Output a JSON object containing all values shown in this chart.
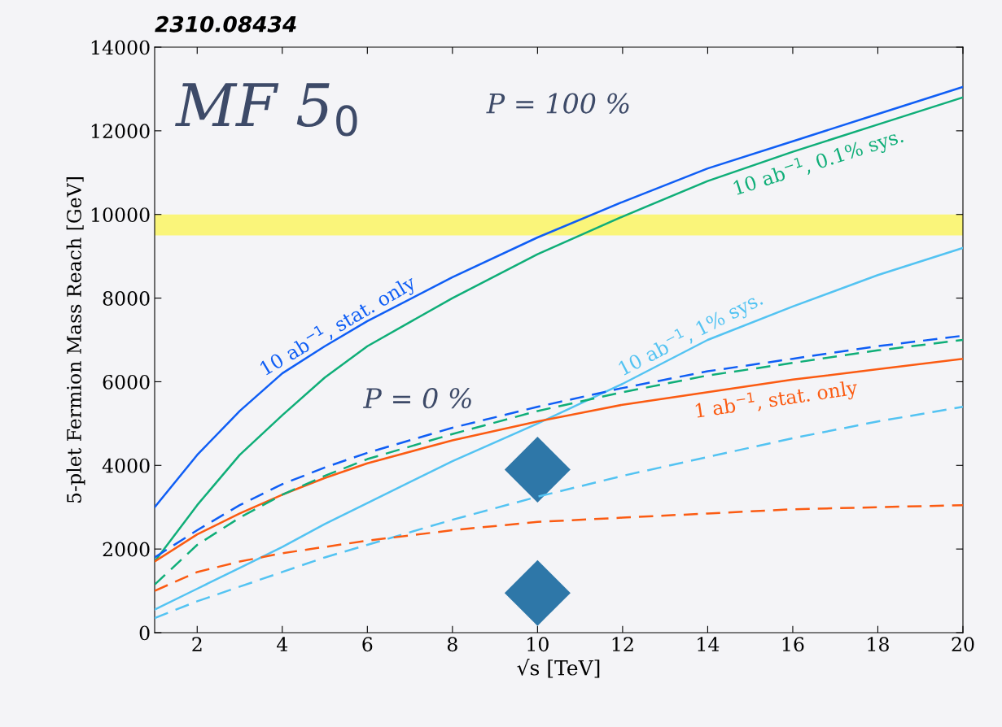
{
  "chart_data": {
    "type": "line",
    "title": "2310.08434",
    "xlabel": "√s [TeV]",
    "ylabel": "5-plet Fermion Mass Reach [GeV]",
    "x": [
      1,
      2,
      3,
      4,
      5,
      6,
      8,
      10,
      12,
      14,
      16,
      18,
      20
    ],
    "xlim": [
      1,
      20
    ],
    "xticks": [
      2,
      4,
      6,
      8,
      10,
      12,
      14,
      16,
      18,
      20
    ],
    "ylim": [
      0,
      14000
    ],
    "yticks": [
      0,
      2000,
      4000,
      6000,
      8000,
      10000,
      12000,
      14000
    ],
    "grid": false,
    "legend": false,
    "series": [
      {
        "name": "10 ab$^{−1}$, stat. only",
        "color": "#0f5ef5",
        "line_style": "solid",
        "values": [
          3000,
          4250,
          5300,
          6200,
          6850,
          7450,
          8500,
          9450,
          10300,
          11100,
          11750,
          12400,
          13050
        ]
      },
      {
        "name": "10 ab$^{−1}$, 0.1% sys.",
        "color": "#0fae78",
        "line_style": "solid",
        "values": [
          1700,
          3050,
          4250,
          5200,
          6100,
          6850,
          8000,
          9050,
          9950,
          10800,
          11500,
          12150,
          12800
        ]
      },
      {
        "name": "10 ab$^{−1}$, 1% sys.",
        "color": "#53c3f2",
        "line_style": "solid",
        "values": [
          550,
          1050,
          1550,
          2050,
          2600,
          3100,
          4100,
          5000,
          5950,
          7000,
          7800,
          8550,
          9200
        ]
      },
      {
        "name": "1 ab$^{−1}$, stat. only",
        "color": "#fb5b12",
        "line_style": "solid",
        "values": [
          1700,
          2350,
          2850,
          3300,
          3700,
          4050,
          4600,
          5050,
          5450,
          5750,
          6050,
          6300,
          6550
        ]
      },
      {
        "color": "#0f5ef5",
        "line_style": "dashed",
        "values": [
          1800,
          2450,
          3050,
          3550,
          3950,
          4300,
          4900,
          5400,
          5850,
          6250,
          6550,
          6850,
          7100
        ]
      },
      {
        "color": "#0fae78",
        "line_style": "dashed",
        "values": [
          1150,
          2100,
          2750,
          3300,
          3750,
          4150,
          4750,
          5300,
          5750,
          6150,
          6450,
          6750,
          7000
        ]
      },
      {
        "color": "#53c3f2",
        "line_style": "dashed",
        "values": [
          350,
          750,
          1100,
          1450,
          1800,
          2100,
          2700,
          3250,
          3750,
          4200,
          4650,
          5050,
          5400
        ]
      },
      {
        "color": "#fb5b12",
        "line_style": "dashed",
        "values": [
          1000,
          1450,
          1700,
          1900,
          2050,
          2200,
          2450,
          2650,
          2750,
          2850,
          2950,
          3000,
          3050
        ]
      },
      {
        "type": "scatter",
        "color": "#2e77a8",
        "marker": "diamond",
        "x": [
          10,
          10
        ],
        "values": [
          3900,
          950
        ]
      }
    ],
    "bands": [
      {
        "axis": "y",
        "from": 9500,
        "to": 10000,
        "color": "#faf57a"
      }
    ],
    "annotations": [
      "MF 5$_{0}$",
      "P = 100 %",
      "P = 0 %"
    ]
  }
}
